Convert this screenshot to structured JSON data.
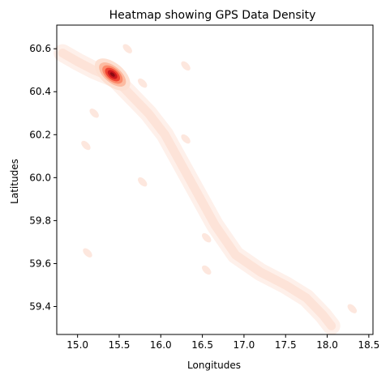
{
  "chart_data": {
    "type": "heatmap",
    "title": "Heatmap showing GPS Data Density",
    "xlabel": "Longitudes",
    "ylabel": "Latitudes",
    "xlim": [
      14.75,
      18.55
    ],
    "ylim": [
      59.27,
      60.71
    ],
    "xticks": [
      15.0,
      15.5,
      16.0,
      16.5,
      17.0,
      17.5,
      18.0,
      18.5
    ],
    "xtick_labels": [
      "15.0",
      "15.5",
      "16.0",
      "16.5",
      "17.0",
      "17.5",
      "18.0",
      "18.5"
    ],
    "yticks": [
      59.4,
      59.6,
      59.8,
      60.0,
      60.2,
      60.4,
      60.6
    ],
    "ytick_labels": [
      "59.4",
      "59.6",
      "59.8",
      "60.0",
      "60.2",
      "60.4",
      "60.6"
    ],
    "grid": false,
    "colormap": "Reds",
    "density_path": [
      [
        14.82,
        60.58
      ],
      [
        15.0,
        60.54
      ],
      [
        15.2,
        60.5
      ],
      [
        15.45,
        60.46
      ],
      [
        15.65,
        60.38
      ],
      [
        15.85,
        60.3
      ],
      [
        16.05,
        60.2
      ],
      [
        16.25,
        60.06
      ],
      [
        16.45,
        59.92
      ],
      [
        16.65,
        59.78
      ],
      [
        16.9,
        59.64
      ],
      [
        17.2,
        59.56
      ],
      [
        17.5,
        59.5
      ],
      [
        17.75,
        59.44
      ],
      [
        17.95,
        59.36
      ],
      [
        18.05,
        59.31
      ]
    ],
    "hotspot": {
      "lon": 15.42,
      "lat": 60.48
    },
    "secondary_blobs": [
      {
        "lon": 15.6,
        "lat": 60.6
      },
      {
        "lon": 15.78,
        "lat": 60.44
      },
      {
        "lon": 15.2,
        "lat": 60.3
      },
      {
        "lon": 15.1,
        "lat": 60.15
      },
      {
        "lon": 16.3,
        "lat": 60.18
      },
      {
        "lon": 15.78,
        "lat": 59.98
      },
      {
        "lon": 16.55,
        "lat": 59.72
      },
      {
        "lon": 16.55,
        "lat": 59.57
      },
      {
        "lon": 18.3,
        "lat": 59.39
      },
      {
        "lon": 15.12,
        "lat": 59.65
      },
      {
        "lon": 16.3,
        "lat": 60.52
      }
    ]
  }
}
